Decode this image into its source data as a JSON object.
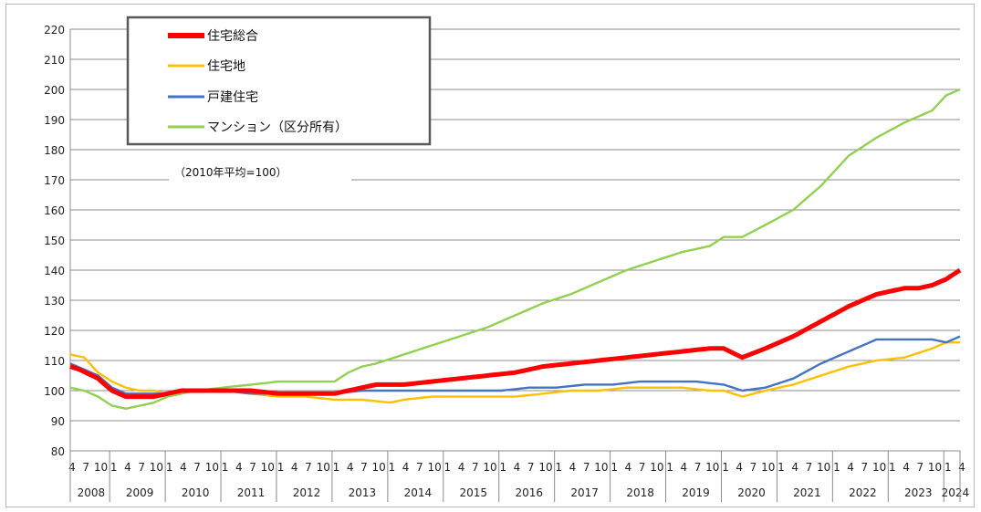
{
  "chart_data": {
    "type": "line",
    "title": "",
    "xlabel": "",
    "ylabel": "",
    "note": "（2010年平均=100）",
    "ylim": [
      80,
      220
    ],
    "yticks": [
      80,
      90,
      100,
      110,
      120,
      130,
      140,
      150,
      160,
      170,
      180,
      190,
      200,
      210,
      220
    ],
    "grid": true,
    "legend_position": "top-left",
    "month_tick_labels": [
      "4",
      "7",
      "10",
      "1"
    ],
    "years": [
      "2008",
      "2009",
      "2010",
      "2011",
      "2012",
      "2013",
      "2014",
      "2015",
      "2016",
      "2017",
      "2018",
      "2019",
      "2020",
      "2021",
      "2022",
      "2023",
      "2024"
    ],
    "x_start": "2008-04",
    "x_end": "2024-04",
    "series": [
      {
        "name": "住宅総合",
        "color": "#ff0000",
        "knots": [
          [
            "2008-04",
            108
          ],
          [
            "2008-06",
            107
          ],
          [
            "2008-10",
            104
          ],
          [
            "2009-01",
            100
          ],
          [
            "2009-04",
            98
          ],
          [
            "2009-07",
            98
          ],
          [
            "2009-10",
            98
          ],
          [
            "2010-01",
            99
          ],
          [
            "2010-04",
            100
          ],
          [
            "2010-07",
            100
          ],
          [
            "2011-01",
            100
          ],
          [
            "2011-07",
            100
          ],
          [
            "2012-01",
            99
          ],
          [
            "2012-07",
            99
          ],
          [
            "2013-01",
            99
          ],
          [
            "2013-04",
            100
          ],
          [
            "2013-07",
            101
          ],
          [
            "2013-10",
            102
          ],
          [
            "2014-04",
            102
          ],
          [
            "2014-10",
            103
          ],
          [
            "2015-04",
            104
          ],
          [
            "2015-10",
            105
          ],
          [
            "2016-04",
            106
          ],
          [
            "2016-10",
            108
          ],
          [
            "2017-04",
            109
          ],
          [
            "2017-10",
            110
          ],
          [
            "2018-04",
            111
          ],
          [
            "2018-10",
            112
          ],
          [
            "2019-04",
            113
          ],
          [
            "2019-10",
            114
          ],
          [
            "2020-01",
            114
          ],
          [
            "2020-05",
            111
          ],
          [
            "2020-10",
            114
          ],
          [
            "2021-04",
            118
          ],
          [
            "2021-10",
            123
          ],
          [
            "2022-04",
            128
          ],
          [
            "2022-10",
            132
          ],
          [
            "2023-04",
            134
          ],
          [
            "2023-07",
            134
          ],
          [
            "2023-10",
            135
          ],
          [
            "2024-01",
            137
          ],
          [
            "2024-04",
            140
          ]
        ]
      },
      {
        "name": "住宅地",
        "color": "#ffc000",
        "knots": [
          [
            "2008-04",
            112
          ],
          [
            "2008-07",
            111
          ],
          [
            "2008-10",
            106
          ],
          [
            "2009-01",
            103
          ],
          [
            "2009-04",
            101
          ],
          [
            "2009-07",
            100
          ],
          [
            "2009-10",
            100
          ],
          [
            "2010-01",
            99
          ],
          [
            "2010-04",
            100
          ],
          [
            "2010-07",
            100
          ],
          [
            "2011-01",
            100
          ],
          [
            "2011-07",
            99
          ],
          [
            "2012-01",
            98
          ],
          [
            "2012-07",
            98
          ],
          [
            "2013-01",
            97
          ],
          [
            "2013-07",
            97
          ],
          [
            "2014-01",
            96
          ],
          [
            "2014-04",
            97
          ],
          [
            "2014-10",
            98
          ],
          [
            "2015-04",
            98
          ],
          [
            "2015-10",
            98
          ],
          [
            "2016-04",
            98
          ],
          [
            "2016-10",
            99
          ],
          [
            "2017-04",
            100
          ],
          [
            "2017-10",
            100
          ],
          [
            "2018-04",
            101
          ],
          [
            "2018-10",
            101
          ],
          [
            "2019-04",
            101
          ],
          [
            "2019-10",
            100
          ],
          [
            "2020-01",
            100
          ],
          [
            "2020-05",
            98
          ],
          [
            "2020-10",
            100
          ],
          [
            "2021-04",
            102
          ],
          [
            "2021-10",
            105
          ],
          [
            "2022-04",
            108
          ],
          [
            "2022-10",
            110
          ],
          [
            "2023-04",
            111
          ],
          [
            "2023-10",
            114
          ],
          [
            "2024-01",
            116
          ],
          [
            "2024-04",
            116
          ]
        ]
      },
      {
        "name": "戸建住宅",
        "color": "#4472c4",
        "knots": [
          [
            "2008-04",
            109
          ],
          [
            "2008-07",
            107
          ],
          [
            "2008-10",
            105
          ],
          [
            "2009-01",
            101
          ],
          [
            "2009-04",
            99
          ],
          [
            "2009-07",
            99
          ],
          [
            "2009-10",
            99
          ],
          [
            "2010-01",
            99
          ],
          [
            "2010-04",
            100
          ],
          [
            "2010-07",
            100
          ],
          [
            "2011-01",
            100
          ],
          [
            "2011-07",
            99
          ],
          [
            "2012-01",
            99
          ],
          [
            "2012-07",
            99
          ],
          [
            "2013-01",
            99
          ],
          [
            "2013-07",
            100
          ],
          [
            "2014-01",
            100
          ],
          [
            "2014-07",
            100
          ],
          [
            "2015-01",
            100
          ],
          [
            "2015-07",
            100
          ],
          [
            "2016-01",
            100
          ],
          [
            "2016-07",
            101
          ],
          [
            "2017-01",
            101
          ],
          [
            "2017-07",
            102
          ],
          [
            "2018-01",
            102
          ],
          [
            "2018-07",
            103
          ],
          [
            "2019-01",
            103
          ],
          [
            "2019-07",
            103
          ],
          [
            "2020-01",
            102
          ],
          [
            "2020-05",
            100
          ],
          [
            "2020-10",
            101
          ],
          [
            "2021-04",
            104
          ],
          [
            "2021-10",
            109
          ],
          [
            "2022-04",
            113
          ],
          [
            "2022-10",
            117
          ],
          [
            "2023-04",
            117
          ],
          [
            "2023-10",
            117
          ],
          [
            "2024-01",
            116
          ],
          [
            "2024-04",
            118
          ]
        ]
      },
      {
        "name": "マンション（区分所有）",
        "color": "#92d050",
        "knots": [
          [
            "2008-04",
            101
          ],
          [
            "2008-07",
            100
          ],
          [
            "2008-10",
            98
          ],
          [
            "2009-01",
            95
          ],
          [
            "2009-04",
            94
          ],
          [
            "2009-07",
            95
          ],
          [
            "2009-10",
            96
          ],
          [
            "2010-01",
            98
          ],
          [
            "2010-04",
            99
          ],
          [
            "2010-07",
            100
          ],
          [
            "2011-01",
            101
          ],
          [
            "2011-07",
            102
          ],
          [
            "2012-01",
            103
          ],
          [
            "2012-07",
            103
          ],
          [
            "2013-01",
            103
          ],
          [
            "2013-04",
            106
          ],
          [
            "2013-07",
            108
          ],
          [
            "2013-10",
            109
          ],
          [
            "2014-04",
            112
          ],
          [
            "2014-10",
            115
          ],
          [
            "2015-04",
            118
          ],
          [
            "2015-10",
            121
          ],
          [
            "2016-04",
            125
          ],
          [
            "2016-10",
            129
          ],
          [
            "2017-04",
            132
          ],
          [
            "2017-10",
            136
          ],
          [
            "2018-04",
            140
          ],
          [
            "2018-10",
            143
          ],
          [
            "2019-04",
            146
          ],
          [
            "2019-10",
            148
          ],
          [
            "2020-01",
            151
          ],
          [
            "2020-05",
            151
          ],
          [
            "2020-10",
            155
          ],
          [
            "2021-04",
            160
          ],
          [
            "2021-10",
            168
          ],
          [
            "2022-04",
            178
          ],
          [
            "2022-10",
            184
          ],
          [
            "2023-04",
            189
          ],
          [
            "2023-10",
            193
          ],
          [
            "2024-01",
            198
          ],
          [
            "2024-04",
            200
          ]
        ]
      }
    ]
  }
}
